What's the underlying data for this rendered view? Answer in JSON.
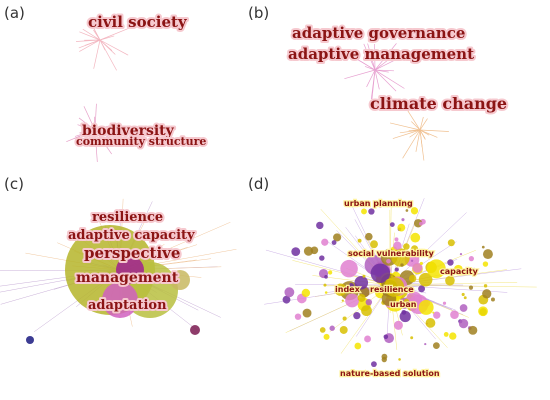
{
  "panels": [
    {
      "label": "(a)",
      "keywords": [
        "civil society",
        "biodiversity",
        "community structure"
      ]
    },
    {
      "label": "(b)",
      "keywords": [
        "adaptive governance",
        "adaptive management",
        "climate change"
      ]
    },
    {
      "label": "(c)",
      "keywords": [
        "resilience",
        "adaptive capacity",
        "perspective",
        "management",
        "adaptation"
      ]
    },
    {
      "label": "(d)",
      "keywords": [
        "urban planning",
        "social vulnerability",
        "capacity",
        "index",
        "resilience",
        "urban",
        "nature-based solution"
      ]
    }
  ]
}
